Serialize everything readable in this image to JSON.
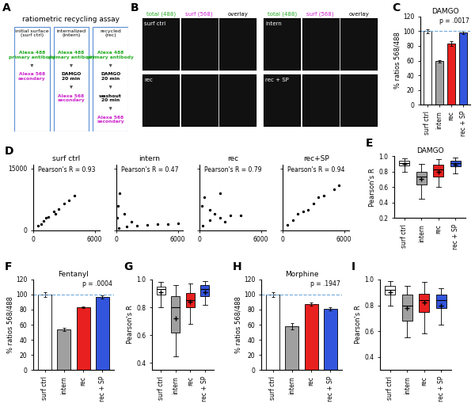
{
  "diagram": {
    "panel": "A",
    "title": "ratiometric recycling assay",
    "boxes": [
      {
        "header": "initial surface\n(surf ctrl)",
        "steps": [
          {
            "text": "Alexa 488\nprimary antibody",
            "color": "#22aa22"
          },
          {
            "text": "Alexa 568\nsecondary",
            "color": "#cc22cc"
          }
        ]
      },
      {
        "header": "internalized\n(intern)",
        "steps": [
          {
            "text": "Alexa 488\nprimary antibody",
            "color": "#22aa22"
          },
          {
            "text": "DAMGO\n20 min",
            "color": "#000000"
          },
          {
            "text": "Alexa 568\nsecondary",
            "color": "#cc22cc"
          }
        ]
      },
      {
        "header": "recycled\n(rec)",
        "steps": [
          {
            "text": "Alexa 488\nprimary antibody",
            "color": "#22aa22"
          },
          {
            "text": "DAMGO\n20 min",
            "color": "#000000"
          },
          {
            "text": "washout\n20 min",
            "color": "#000000"
          },
          {
            "text": "Alexa 568\nsecondary",
            "color": "#cc22cc"
          }
        ]
      }
    ]
  },
  "images": {
    "panel": "B",
    "channels": [
      {
        "text": "total (488)",
        "color": "#22aa22"
      },
      {
        "text": "surf (568)",
        "color": "#cc22cc"
      },
      {
        "text": "overlay",
        "color": "#000000"
      }
    ],
    "groups": [
      [
        "surf ctrl",
        "rec"
      ],
      [
        "intern",
        "rec + SP"
      ]
    ]
  },
  "chart_data": [
    {
      "type": "bar",
      "panel": "C",
      "title": "DAMGO",
      "ylabel": "% ratios 568/488",
      "categories": [
        "surf ctrl",
        "intern",
        "rec",
        "rec + SP"
      ],
      "values": [
        100,
        59,
        83,
        98
      ],
      "errors": [
        3,
        2,
        3,
        2
      ],
      "colors": [
        "#ffffff",
        "#a0a0a0",
        "#e8201f",
        "#3355dd"
      ],
      "reference_line": 100,
      "annotation": "p = .0017",
      "ylim": [
        0,
        120
      ],
      "yticks": [
        0,
        20,
        40,
        60,
        80,
        100,
        120
      ]
    },
    {
      "type": "scatter",
      "panel": "D",
      "title": "surf ctrl",
      "annotation": "Pearson's R = 0.93",
      "color": "#000000",
      "x": [
        500,
        800,
        1000,
        1200,
        1500,
        2000,
        2200,
        2500,
        3000,
        3500,
        4000
      ],
      "values": [
        1000,
        1500,
        2200,
        3000,
        3300,
        4500,
        4000,
        5200,
        6500,
        7200,
        8500
      ],
      "xlim": [
        0,
        6500
      ],
      "xticks": [
        0,
        6000
      ],
      "ylim": [
        0,
        16000
      ],
      "yticks": [
        0,
        15000
      ]
    },
    {
      "type": "scatter",
      "title": "intern",
      "annotation": "Pearson's R = 0.47",
      "color": "#000000",
      "tick_labels": "x",
      "x": [
        200,
        1000,
        2000,
        3000,
        4000,
        5000,
        6000,
        100,
        150,
        300,
        800,
        1500
      ],
      "values": [
        500,
        800,
        1000,
        1200,
        1400,
        1500,
        1600,
        3000,
        6000,
        9000,
        4000,
        2000
      ],
      "xlim": [
        0,
        6500
      ],
      "xticks": [
        0,
        6000
      ],
      "ylim": [
        0,
        16000
      ],
      "yticks": [
        0,
        15000
      ]
    },
    {
      "type": "scatter",
      "title": "rec",
      "annotation": "Pearson's R = 0.79",
      "color": "#000000",
      "tick_labels": "x",
      "x": [
        300,
        1000,
        2000,
        3000,
        4000,
        200,
        500,
        1000,
        1500,
        2500,
        2000
      ],
      "values": [
        1000,
        2500,
        3000,
        3500,
        3500,
        6000,
        8000,
        5000,
        4000,
        2000,
        9000
      ],
      "xlim": [
        0,
        6500
      ],
      "xticks": [
        0,
        6000
      ],
      "ylim": [
        0,
        16000
      ],
      "yticks": [
        0,
        15000
      ]
    },
    {
      "type": "scatter",
      "title": "rec+SP",
      "annotation": "Pearson's R = 0.94",
      "color": "#000000",
      "tick_labels": "x",
      "x": [
        500,
        1000,
        1500,
        2000,
        2500,
        3000,
        3500,
        4000,
        5000,
        5500
      ],
      "values": [
        1200,
        2500,
        4000,
        4500,
        5000,
        6500,
        8000,
        8500,
        10000,
        11000
      ],
      "xlim": [
        0,
        6500
      ],
      "xticks": [
        0,
        6000
      ],
      "ylim": [
        0,
        16000
      ],
      "yticks": [
        0,
        15000
      ]
    },
    {
      "type": "box",
      "panel": "E",
      "title": "DAMGO",
      "ylabel": "Pearson's R",
      "categories": [
        "surf ctrl",
        "intern",
        "rec",
        "rec + SP"
      ],
      "colors": [
        "#ffffff",
        "#a0a0a0",
        "#e8201f",
        "#3355dd"
      ],
      "whislo": [
        0.8,
        0.45,
        0.6,
        0.78
      ],
      "q1": [
        0.88,
        0.63,
        0.74,
        0.87
      ],
      "med": [
        0.91,
        0.74,
        0.83,
        0.91
      ],
      "q3": [
        0.94,
        0.8,
        0.89,
        0.94
      ],
      "whishi": [
        0.97,
        0.9,
        0.96,
        0.98
      ],
      "mean": [
        0.9,
        0.7,
        0.8,
        0.89
      ],
      "ylim": [
        0.2,
        1.0
      ],
      "yticks": [
        0.2,
        0.4,
        0.6,
        0.8,
        1.0
      ]
    },
    {
      "type": "bar",
      "panel": "F",
      "title": "Fentanyl",
      "ylabel": "% ratios 568/488",
      "categories": [
        "surf ctrl",
        "intern",
        "rec",
        "rec + SP"
      ],
      "values": [
        100,
        54,
        83,
        97
      ],
      "errors": [
        3,
        2,
        1,
        2
      ],
      "colors": [
        "#ffffff",
        "#a0a0a0",
        "#e8201f",
        "#3355dd"
      ],
      "reference_line": 100,
      "annotation": "p = .0004",
      "ylim": [
        0,
        120
      ],
      "yticks": [
        0,
        20,
        40,
        60,
        80,
        100,
        120
      ]
    },
    {
      "type": "box",
      "panel": "G",
      "ylabel": "Pearson's R",
      "categories": [
        "surf ctrl",
        "intern",
        "rec",
        "rec + SP"
      ],
      "colors": [
        "#ffffff",
        "#a0a0a0",
        "#e8201f",
        "#3355dd"
      ],
      "whislo": [
        0.8,
        0.45,
        0.68,
        0.82
      ],
      "q1": [
        0.89,
        0.62,
        0.8,
        0.88
      ],
      "med": [
        0.93,
        0.8,
        0.85,
        0.93
      ],
      "q3": [
        0.95,
        0.88,
        0.9,
        0.96
      ],
      "whishi": [
        0.98,
        0.96,
        0.97,
        0.99
      ],
      "mean": [
        0.91,
        0.72,
        0.84,
        0.91
      ],
      "ylim": [
        0.35,
        1.0
      ],
      "yticks": [
        0.4,
        0.6,
        0.8,
        1.0
      ]
    },
    {
      "type": "bar",
      "panel": "H",
      "title": "Morphine",
      "ylabel": "% ratios 568/488",
      "categories": [
        "surf ctrl",
        "intern",
        "rec",
        "rec + SP"
      ],
      "values": [
        100,
        58,
        87,
        81
      ],
      "errors": [
        3,
        4,
        2,
        2
      ],
      "colors": [
        "#ffffff",
        "#a0a0a0",
        "#e8201f",
        "#3355dd"
      ],
      "reference_line": 100,
      "annotation": "p = .1947",
      "ylim": [
        0,
        120
      ],
      "yticks": [
        0,
        20,
        40,
        60,
        80,
        100,
        120
      ]
    },
    {
      "type": "box",
      "panel": "I",
      "ylabel": "Pearson's R",
      "categories": [
        "surf ctrl",
        "intern",
        "rec",
        "rec + SP"
      ],
      "colors": [
        "#ffffff",
        "#a0a0a0",
        "#e8201f",
        "#3355dd"
      ],
      "whislo": [
        0.8,
        0.55,
        0.58,
        0.65
      ],
      "q1": [
        0.88,
        0.68,
        0.75,
        0.78
      ],
      "med": [
        0.92,
        0.8,
        0.84,
        0.84
      ],
      "q3": [
        0.95,
        0.88,
        0.89,
        0.88
      ],
      "whishi": [
        0.99,
        0.95,
        0.98,
        0.93
      ],
      "mean": [
        0.9,
        0.78,
        0.82,
        0.8
      ],
      "ylim": [
        0.3,
        1.0
      ],
      "yticks": [
        0.4,
        0.6,
        0.8,
        1.0
      ]
    }
  ]
}
